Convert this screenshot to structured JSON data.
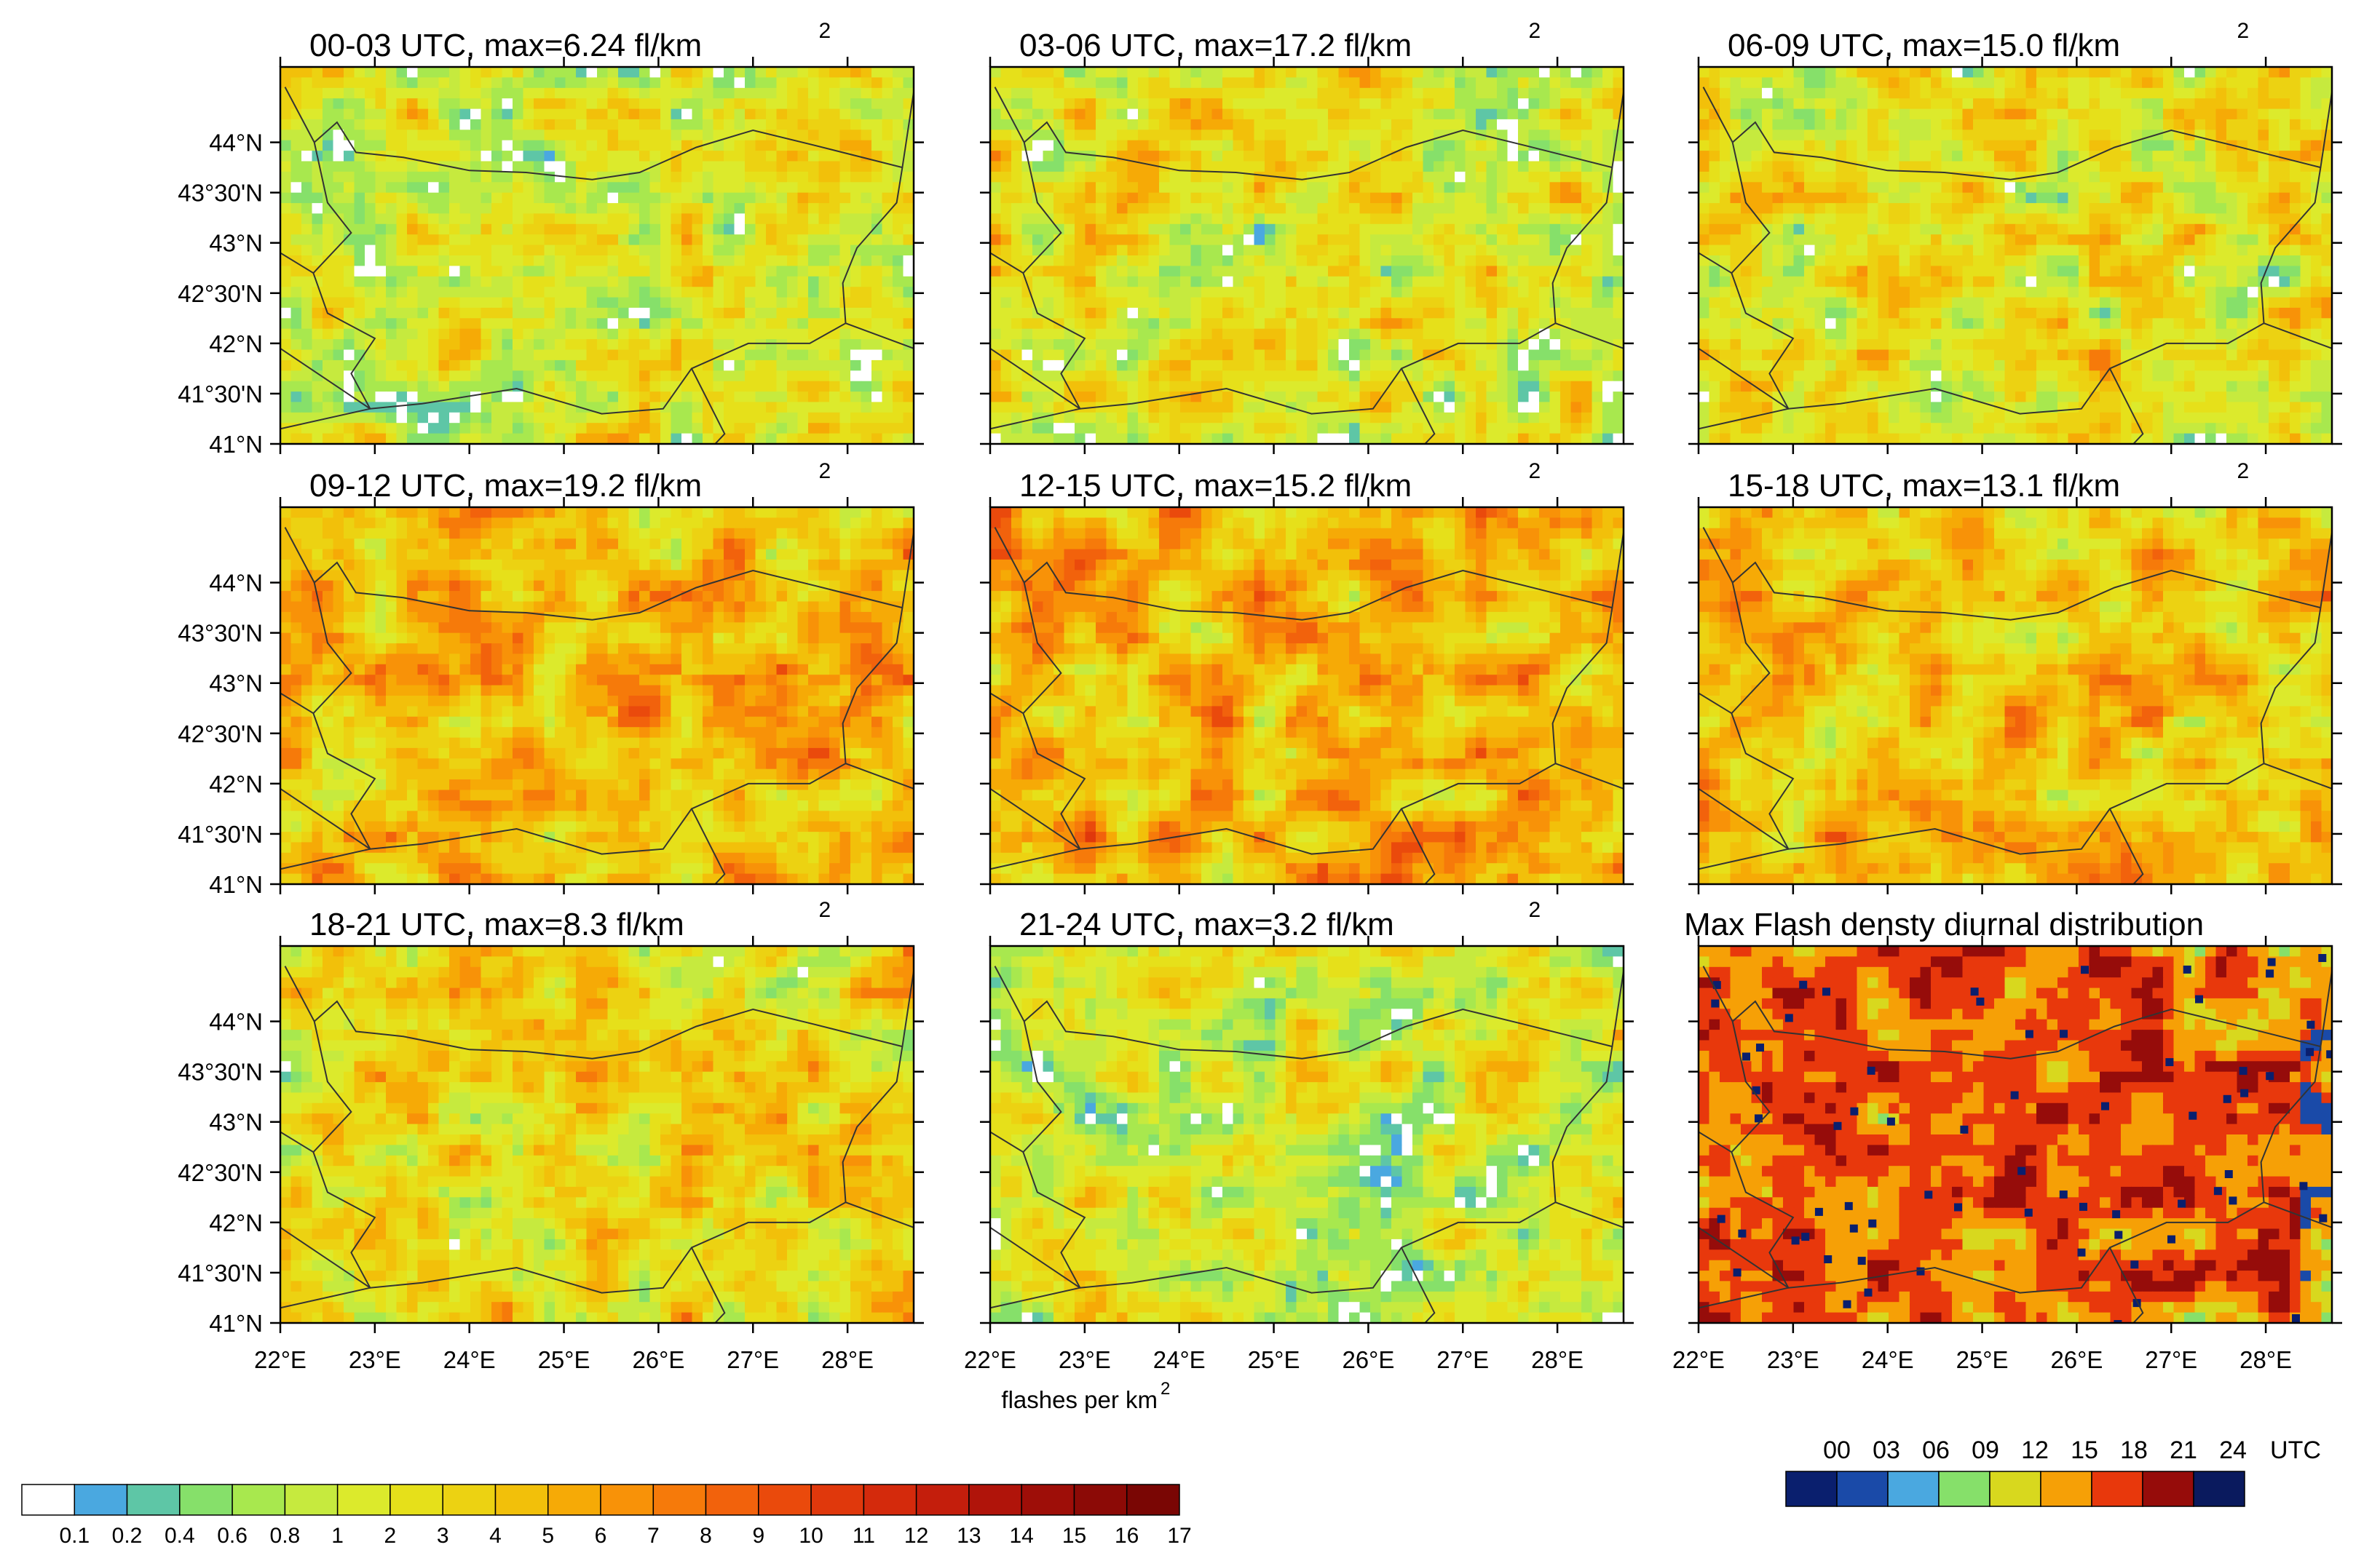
{
  "chart_data": {
    "type": "heatmap",
    "panels": [
      {
        "id": "p1",
        "title": "00-03 UTC, max=6.24 fl/km",
        "superscript": "2",
        "max_value": 6.24,
        "intensity": 0.32,
        "white_fraction": 0.14,
        "seed": 11
      },
      {
        "id": "p2",
        "title": "03-06 UTC, max=17.2 fl/km",
        "superscript": "2",
        "max_value": 17.2,
        "intensity": 0.36,
        "white_fraction": 0.12,
        "seed": 23
      },
      {
        "id": "p3",
        "title": "06-09 UTC, max=15.0 fl/km",
        "superscript": "2",
        "max_value": 15.0,
        "intensity": 0.37,
        "white_fraction": 0.07,
        "seed": 37
      },
      {
        "id": "p4",
        "title": "09-12 UTC, max=19.2 fl/km",
        "superscript": "2",
        "max_value": 19.2,
        "intensity": 0.64,
        "white_fraction": 0.0,
        "seed": 41
      },
      {
        "id": "p5",
        "title": "12-15 UTC, max=15.2 fl/km",
        "superscript": "2",
        "max_value": 15.2,
        "intensity": 0.68,
        "white_fraction": 0.0,
        "seed": 53
      },
      {
        "id": "p6",
        "title": "15-18 UTC, max=13.1 fl/km",
        "superscript": "2",
        "max_value": 13.1,
        "intensity": 0.58,
        "white_fraction": 0.0,
        "seed": 67
      },
      {
        "id": "p7",
        "title": "18-21 UTC, max=8.3 fl/km",
        "superscript": "2",
        "max_value": 8.3,
        "intensity": 0.47,
        "white_fraction": 0.01,
        "seed": 71
      },
      {
        "id": "p8",
        "title": "21-24 UTC, max=3.2 fl/km",
        "superscript": "2",
        "max_value": 3.2,
        "intensity": 0.27,
        "white_fraction": 0.12,
        "seed": 83
      },
      {
        "id": "p9",
        "title": "Max Flash densty diurnal distribution",
        "superscript": "",
        "kind": "diurnal",
        "seed": 97
      }
    ],
    "lat_ticks": [
      "44°N",
      "43°30'N",
      "43°N",
      "42°30'N",
      "42°N",
      "41°30'N",
      "41°N"
    ],
    "lat_values": [
      44.0,
      43.5,
      43.0,
      42.5,
      42.0,
      41.5,
      41.0
    ],
    "lon_ticks": [
      "22°E",
      "23°E",
      "24°E",
      "25°E",
      "26°E",
      "27°E",
      "28°E"
    ],
    "lon_values": [
      22,
      23,
      24,
      25,
      26,
      27,
      28
    ],
    "xlim": [
      22.0,
      28.7
    ],
    "ylim": [
      41.0,
      44.75
    ],
    "xlabel": "flashes per km",
    "xlabel_superscript": "2",
    "colorbar": {
      "labels": [
        "0.1",
        "0.2",
        "0.4",
        "0.6",
        "0.8",
        "1",
        "2",
        "3",
        "4",
        "5",
        "6",
        "7",
        "8",
        "9",
        "10",
        "11",
        "12",
        "13",
        "14",
        "15",
        "16",
        "17"
      ],
      "colors": [
        "#ffffff",
        "#4aa8e0",
        "#5ec6a6",
        "#86e06a",
        "#a8e84e",
        "#c6ea3e",
        "#dcea2c",
        "#e6e01a",
        "#ecd212",
        "#f2c00a",
        "#f6aa06",
        "#f89208",
        "#f67a0a",
        "#f2620c",
        "#ea4a0c",
        "#e0380c",
        "#d42a0c",
        "#c41e0c",
        "#b0140a",
        "#9e0e08",
        "#8c0a06",
        "#7a0604"
      ]
    },
    "diurnal_colorbar": {
      "labels": [
        "00",
        "03",
        "06",
        "09",
        "12",
        "15",
        "18",
        "21",
        "24",
        "UTC"
      ],
      "colors": [
        "#0a1f6e",
        "#1a4aa8",
        "#4aa8e0",
        "#86e06a",
        "#d8d81e",
        "#f6a006",
        "#e8380c",
        "#960c0a",
        "#0a1a5e"
      ]
    }
  }
}
